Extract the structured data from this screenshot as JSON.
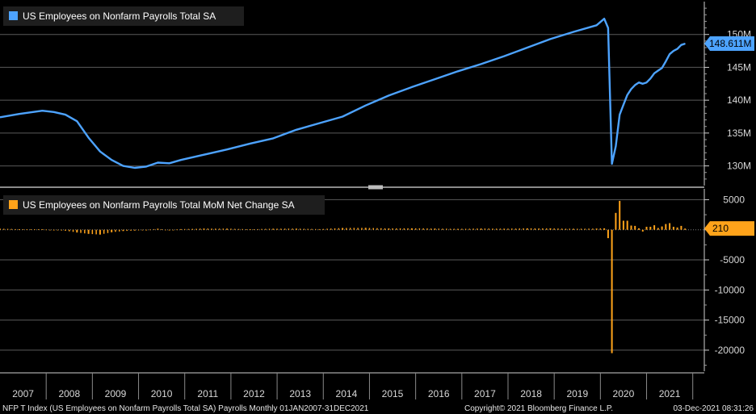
{
  "chart_data": [
    {
      "type": "line",
      "title": "US Employees on Nonfarm Payrolls Total SA",
      "color": "#4da3ff",
      "ylim": [
        127000,
        155000
      ],
      "yticks": [
        130000,
        135000,
        140000,
        145000,
        150000
      ],
      "ytick_labels": [
        "130M",
        "135M",
        "140M",
        "145M",
        "150M"
      ],
      "last_value_label": "148.611M",
      "last_value": 148611,
      "x": [
        "2007-01",
        "2007-06",
        "2007-12",
        "2008-03",
        "2008-06",
        "2008-09",
        "2008-12",
        "2009-03",
        "2009-06",
        "2009-09",
        "2009-12",
        "2010-03",
        "2010-06",
        "2010-09",
        "2010-12",
        "2011-06",
        "2011-12",
        "2012-06",
        "2012-12",
        "2013-06",
        "2013-12",
        "2014-06",
        "2014-12",
        "2015-06",
        "2015-12",
        "2016-06",
        "2016-12",
        "2017-06",
        "2017-12",
        "2018-06",
        "2018-12",
        "2019-06",
        "2019-12",
        "2020-02",
        "2020-03",
        "2020-04",
        "2020-05",
        "2020-06",
        "2020-07",
        "2020-08",
        "2020-09",
        "2020-10",
        "2020-11",
        "2020-12",
        "2021-01",
        "2021-02",
        "2021-03",
        "2021-04",
        "2021-05",
        "2021-06",
        "2021-07",
        "2021-08",
        "2021-09",
        "2021-10",
        "2021-11"
      ],
      "values": [
        137400,
        137900,
        138400,
        138200,
        137800,
        136800,
        134300,
        132200,
        130900,
        130000,
        129700,
        129900,
        130500,
        130400,
        130900,
        131700,
        132500,
        133400,
        134200,
        135500,
        136500,
        137500,
        139200,
        140700,
        142000,
        143200,
        144400,
        145500,
        146700,
        148000,
        149300,
        150400,
        151400,
        152400,
        151000,
        130300,
        133000,
        137800,
        139300,
        140800,
        141700,
        142300,
        142700,
        142500,
        142700,
        143300,
        144100,
        144500,
        144900,
        145900,
        147000,
        147500,
        147800,
        148400,
        148600
      ]
    },
    {
      "type": "bar",
      "title": "US Employees on Nonfarm Payrolls Total MoM Net Change SA",
      "color": "#ffa31a",
      "ylim": [
        -23500,
        6800
      ],
      "yticks": [
        -20000,
        -15000,
        -10000,
        -5000,
        0,
        5000
      ],
      "ytick_labels": [
        "-20000",
        "-15000",
        "-10000",
        "-5000",
        "",
        "5000"
      ],
      "last_value_label": "210",
      "last_value": 210,
      "x": [
        "2007-01",
        "2007-06",
        "2007-12",
        "2008-03",
        "2008-06",
        "2008-09",
        "2008-12",
        "2009-03",
        "2009-06",
        "2009-09",
        "2009-12",
        "2010-03",
        "2010-06",
        "2010-09",
        "2010-12",
        "2011-06",
        "2011-12",
        "2012-06",
        "2012-12",
        "2013-06",
        "2013-12",
        "2014-06",
        "2014-12",
        "2015-06",
        "2015-12",
        "2016-06",
        "2016-12",
        "2017-06",
        "2017-12",
        "2018-06",
        "2018-12",
        "2019-06",
        "2019-12",
        "2020-02",
        "2020-03",
        "2020-04",
        "2020-05",
        "2020-06",
        "2020-07",
        "2020-08",
        "2020-09",
        "2020-10",
        "2020-11",
        "2020-12",
        "2021-01",
        "2021-02",
        "2021-03",
        "2021-04",
        "2021-05",
        "2021-06",
        "2021-07",
        "2021-08",
        "2021-09",
        "2021-10",
        "2021-11"
      ],
      "values": [
        180,
        100,
        90,
        -60,
        -150,
        -450,
        -680,
        -800,
        -420,
        -220,
        -130,
        -20,
        180,
        -60,
        110,
        200,
        190,
        80,
        180,
        190,
        110,
        300,
        320,
        220,
        250,
        200,
        150,
        210,
        180,
        240,
        230,
        160,
        200,
        250,
        -1400,
        -20500,
        2800,
        4800,
        1500,
        1500,
        700,
        650,
        250,
        -300,
        500,
        500,
        750,
        300,
        550,
        950,
        1100,
        500,
        380,
        650,
        210
      ]
    }
  ],
  "years": [
    "2007",
    "2008",
    "2009",
    "2010",
    "2011",
    "2012",
    "2013",
    "2014",
    "2015",
    "2016",
    "2017",
    "2018",
    "2019",
    "2020",
    "2021"
  ],
  "footer": {
    "left": "NFP T Index (US Employees on Nonfarm Payrolls Total SA) Payrolls  Monthly 01JAN2007-31DEC2021",
    "center": "Copyright© 2021 Bloomberg Finance L.P.",
    "right": "03-Dec-2021 08:31:26"
  }
}
